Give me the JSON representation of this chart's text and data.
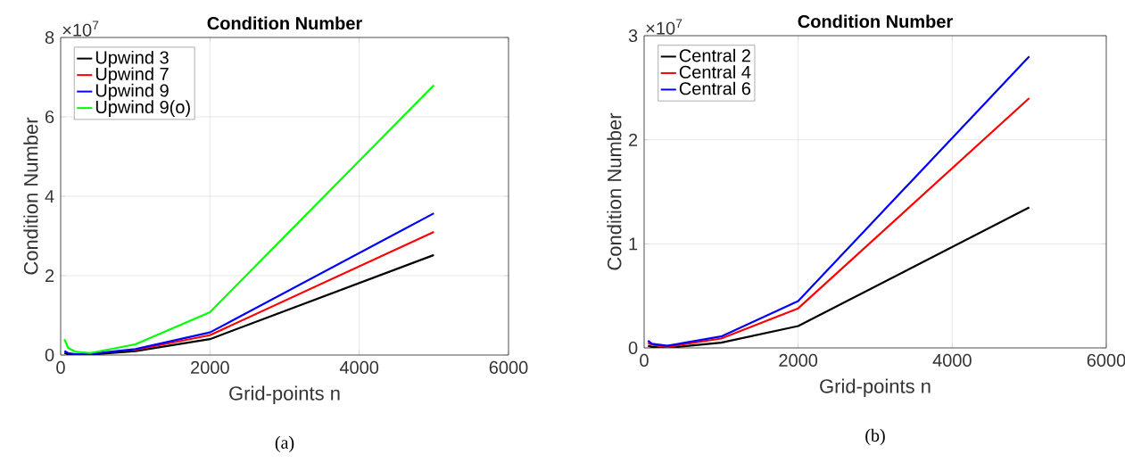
{
  "chart_data": [
    {
      "type": "line",
      "title": "Condition Number",
      "xlabel": "Grid-points n",
      "ylabel": "Condition Number",
      "annotations": [
        "×10$^{7}$",
        "(a)"
      ],
      "xlim": [
        0,
        6000
      ],
      "ylim": [
        0,
        8
      ],
      "xticks": [
        0,
        2000,
        4000,
        6000
      ],
      "yticks": [
        0,
        2,
        4,
        6,
        8
      ],
      "grid": true,
      "legend": "top left",
      "line_style": "solid",
      "x": [
        50,
        100,
        200,
        400,
        1000,
        2000,
        5000
      ],
      "series": [
        {
          "name": "Upwind 3",
          "color": "#000000",
          "values": [
            0.05,
            0.02,
            0.01,
            0.01,
            0.1,
            0.4,
            2.52
          ]
        },
        {
          "name": "Upwind 7",
          "color": "#ff0000",
          "values": [
            null,
            null,
            null,
            null,
            0.13,
            0.5,
            3.1
          ]
        },
        {
          "name": "Upwind 9",
          "color": "#0000ff",
          "values": [
            0.1,
            0.05,
            0.02,
            0.03,
            0.15,
            0.57,
            3.57
          ]
        },
        {
          "name": "Upwind 9(o)",
          "color": "#00ff00",
          "values": [
            0.4,
            0.18,
            0.08,
            0.05,
            0.27,
            1.08,
            6.8
          ]
        }
      ]
    },
    {
      "type": "line",
      "title": "Condition Number",
      "xlabel": "Grid-points n",
      "ylabel": "Condition Number",
      "annotations": [
        "×10$^{7}$",
        "(b)"
      ],
      "xlim": [
        0,
        6000
      ],
      "ylim": [
        0,
        3
      ],
      "xticks": [
        0,
        2000,
        4000,
        6000
      ],
      "yticks": [
        0,
        1,
        2,
        3
      ],
      "grid": true,
      "legend": "top left",
      "line_style": "solid",
      "x": [
        50,
        100,
        300,
        1000,
        2000,
        5000
      ],
      "series": [
        {
          "name": "Central 2",
          "color": "#000000",
          "values": [
            0.02,
            0.01,
            0,
            0.05,
            0.21,
            1.35
          ]
        },
        {
          "name": "Central 4",
          "color": "#ff0000",
          "values": [
            0.05,
            0.03,
            0.01,
            0.09,
            0.38,
            2.4
          ]
        },
        {
          "name": "Central 6",
          "color": "#0000ff",
          "values": [
            0.07,
            0.04,
            0.02,
            0.11,
            0.45,
            2.8
          ]
        }
      ]
    }
  ]
}
